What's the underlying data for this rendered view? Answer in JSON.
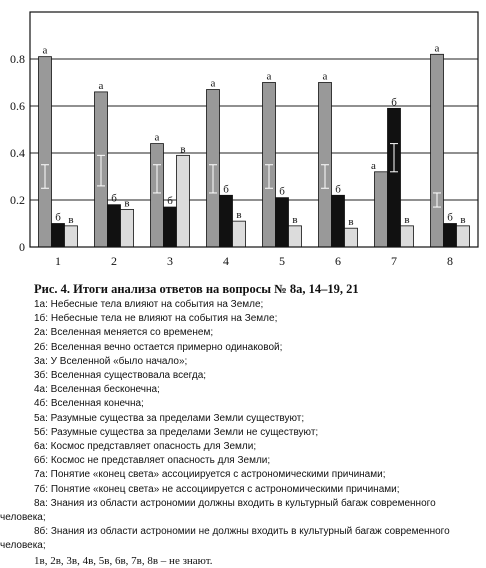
{
  "chart_data": {
    "type": "bar",
    "categories": [
      "1",
      "2",
      "3",
      "4",
      "5",
      "6",
      "7",
      "8"
    ],
    "ylim": [
      0,
      1.0
    ],
    "yticks": [
      "0",
      "0.2",
      "0.4",
      "0.6",
      "0.8"
    ],
    "ytick_values": [
      0,
      0.2,
      0.4,
      0.6,
      0.8
    ],
    "grid": true,
    "series": [
      {
        "name": "а",
        "color": "#999999",
        "values": [
          0.81,
          0.66,
          0.44,
          0.67,
          0.7,
          0.7,
          0.32,
          0.82
        ],
        "error": [
          [
            0.25,
            0.35
          ],
          [
            0.26,
            0.39
          ],
          [
            0.23,
            0.35
          ],
          [
            0.23,
            0.35
          ],
          [
            0.25,
            0.35
          ],
          [
            0.25,
            0.35
          ],
          null,
          [
            0.17,
            0.23
          ]
        ]
      },
      {
        "name": "б",
        "color": "#111111",
        "values": [
          0.1,
          0.18,
          0.17,
          0.22,
          0.21,
          0.22,
          0.59,
          0.1
        ],
        "error": [
          null,
          null,
          null,
          null,
          null,
          null,
          [
            0.32,
            0.44
          ],
          null
        ]
      },
      {
        "name": "в",
        "color": "#dcdcdc",
        "values": [
          0.09,
          0.16,
          0.39,
          0.11,
          0.09,
          0.08,
          0.09,
          0.09
        ]
      }
    ]
  },
  "caption": "Рис. 4. Итоги анализа ответов на вопросы № 8а, 14–19, 21",
  "legend": [
    "1а: Небесные тела влияют на события на Земле;",
    "1б: Небесные тела не влияют на события на Земле;",
    "2а: Вселенная меняется со временем;",
    "2б: Вселенная вечно остается примерно одинаковой;",
    "3а: У Вселенной «было начало»;",
    "3б: Вселенная существовала всегда;",
    "4а: Вселенная бесконечна;",
    "4б: Вселенная конечна;",
    "5а: Разумные существа за пределами Земли существуют;",
    "5б: Разумные существа за пределами Земли не существуют;",
    "6а: Космос представляет опасность для Земли;",
    "6б: Космос не представляет опасность для Земли;",
    "7а: Понятие «конец света» ассоциируется с астрономическими причинами;",
    "7б: Понятие «конец света» не ассоциируется с астрономическими причинами;",
    "8а: Знания из области астрономии должны входить в культурный багаж современного человека;",
    "8б: Знания из области астрономии не должны входить в культурный багаж современного человека;",
    "1в, 2в, 3в, 4в, 5в, 6в, 7в, 8в – не знают."
  ]
}
